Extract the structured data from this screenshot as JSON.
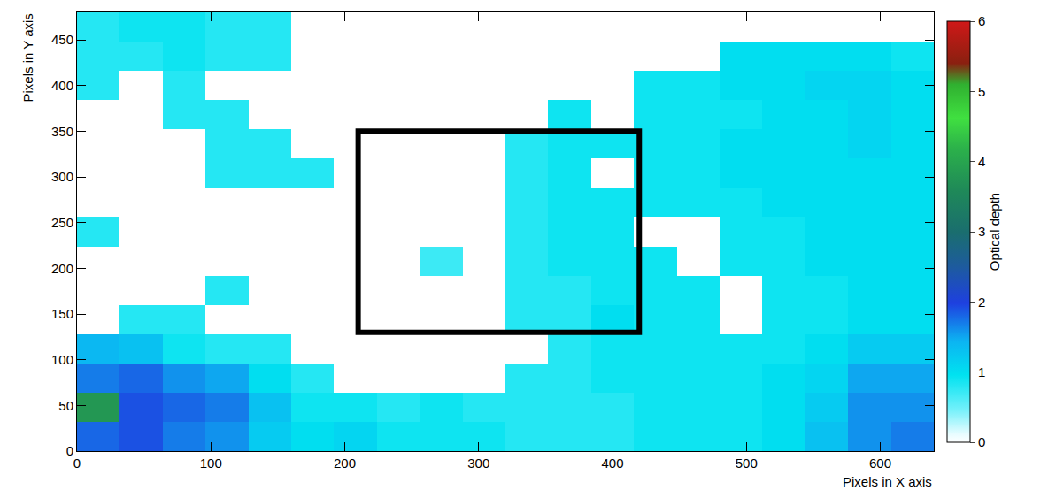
{
  "chart_data": {
    "type": "heatmap",
    "x_label": "Pixels in X axis",
    "y_label": "Pixels in Y axis",
    "xlim": [
      0,
      640
    ],
    "xticks": [
      0,
      100,
      200,
      300,
      400,
      500,
      600
    ],
    "ylim": [
      0,
      480
    ],
    "yticks": [
      0,
      50,
      100,
      150,
      200,
      250,
      300,
      350,
      400,
      450
    ],
    "x": [
      16,
      48,
      80,
      112,
      144,
      176,
      208,
      240,
      272,
      304,
      336,
      368,
      400,
      432,
      464,
      496,
      528,
      560,
      592,
      624
    ],
    "y": [
      16,
      48,
      80,
      112,
      144,
      176,
      208,
      240,
      272,
      304,
      336,
      368,
      400,
      432,
      464
    ],
    "z": [
      [
        1.8,
        1.9,
        1.7,
        1.6,
        1.2,
        1.0,
        1.1,
        0.9,
        0.9,
        0.9,
        0.8,
        0.8,
        0.8,
        0.9,
        0.9,
        0.9,
        1.0,
        1.3,
        1.6,
        1.7
      ],
      [
        3.8,
        1.9,
        1.8,
        1.7,
        1.3,
        0.9,
        0.9,
        0.8,
        0.9,
        0.8,
        0.8,
        0.8,
        0.8,
        0.9,
        0.9,
        0.9,
        1.0,
        1.2,
        1.6,
        1.6
      ],
      [
        1.7,
        1.8,
        1.6,
        1.5,
        1.0,
        0.8,
        0,
        0,
        0,
        0,
        0.8,
        0.8,
        0.9,
        0.9,
        0.9,
        0.9,
        1.0,
        1.1,
        1.5,
        1.5
      ],
      [
        1.4,
        1.3,
        0.9,
        0.8,
        0.8,
        0,
        0,
        0,
        0,
        0,
        0,
        0.8,
        0.9,
        0.9,
        0.9,
        0.9,
        0.9,
        1.0,
        1.2,
        1.2
      ],
      [
        0,
        0.8,
        0.8,
        0,
        0,
        0,
        0,
        0,
        0,
        0,
        0.8,
        0.8,
        1.0,
        0.9,
        0.9,
        0,
        0.9,
        0.9,
        1.0,
        1.0
      ],
      [
        0,
        0,
        0,
        0.8,
        0,
        0,
        0,
        0,
        0,
        0,
        0.8,
        0.8,
        0.9,
        0.9,
        0.9,
        0,
        0.9,
        0.9,
        1.0,
        1.0
      ],
      [
        0,
        0,
        0,
        0,
        0,
        0,
        0,
        0,
        0.7,
        0,
        0.8,
        0.9,
        0.9,
        0.9,
        0,
        0.9,
        0.9,
        1.0,
        1.0,
        1.0
      ],
      [
        0.8,
        0,
        0,
        0,
        0,
        0,
        0,
        0,
        0,
        0,
        0.8,
        0.9,
        0.9,
        0,
        0,
        0.9,
        0.9,
        1.0,
        1.0,
        1.0
      ],
      [
        0,
        0,
        0,
        0,
        0,
        0,
        0,
        0,
        0,
        0,
        0.8,
        0.9,
        0.9,
        0.9,
        0.9,
        0.9,
        1.0,
        1.0,
        1.0,
        1.0
      ],
      [
        0,
        0,
        0,
        0.8,
        0.8,
        0.8,
        0,
        0,
        0,
        0,
        0.8,
        0.9,
        0,
        0.9,
        0.9,
        1.0,
        1.0,
        1.0,
        1.0,
        1.0
      ],
      [
        0,
        0,
        0,
        0.8,
        0.8,
        0,
        0,
        0,
        0,
        0,
        0.8,
        0.9,
        0.9,
        0.9,
        0.9,
        1.0,
        1.0,
        1.0,
        1.1,
        1.0
      ],
      [
        0,
        0,
        0.8,
        0.8,
        0,
        0,
        0,
        0,
        0,
        0,
        0,
        0.9,
        0,
        0.9,
        0.9,
        0.9,
        1.0,
        1.0,
        1.1,
        1.0
      ],
      [
        0.8,
        0,
        0.8,
        0,
        0,
        0,
        0,
        0,
        0,
        0,
        0,
        0,
        0,
        0.9,
        0.9,
        1.0,
        1.0,
        1.1,
        1.1,
        1.0
      ],
      [
        0.8,
        0.8,
        0.9,
        0.8,
        0.8,
        0,
        0,
        0,
        0,
        0,
        0,
        0,
        0,
        0,
        0,
        1.0,
        1.0,
        1.0,
        1.0,
        0.9
      ],
      [
        0.8,
        0.9,
        0.9,
        0.8,
        0.8,
        0,
        0,
        0,
        0,
        0,
        0,
        0,
        0,
        0,
        0,
        0,
        0,
        0,
        0,
        0
      ]
    ],
    "colorbar": {
      "title": "Optical depth",
      "range": [
        0,
        6
      ],
      "ticks": [
        0,
        1,
        2,
        3,
        4,
        5,
        6
      ]
    },
    "region": {
      "x": [
        210,
        420
      ],
      "y": [
        130,
        350
      ]
    }
  }
}
